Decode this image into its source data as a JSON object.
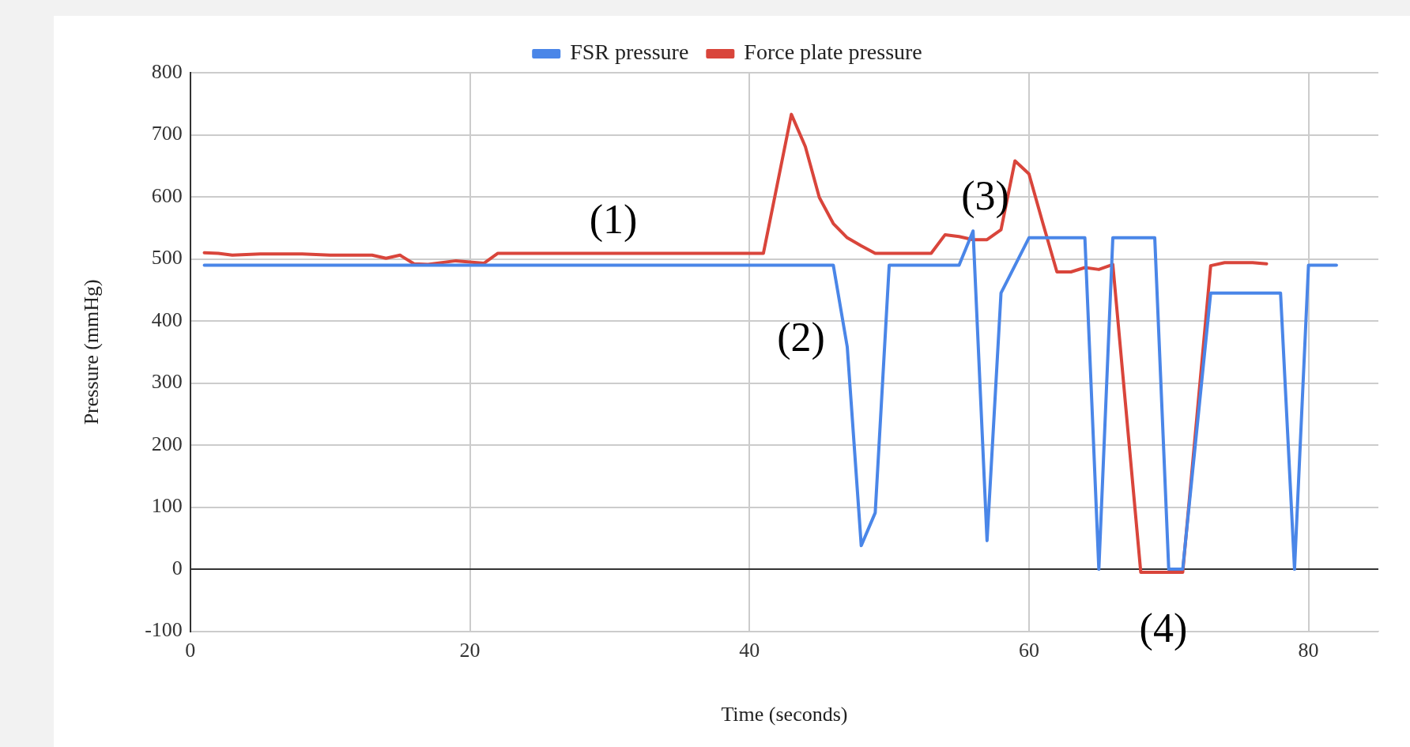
{
  "chart_data": {
    "type": "line",
    "xlabel": "Time (seconds)",
    "ylabel": "Pressure (mmHg)",
    "xlim": [
      0,
      85
    ],
    "xticks": [
      0,
      20,
      40,
      60,
      80
    ],
    "ylim": [
      -100,
      800
    ],
    "yticks": [
      -100,
      0,
      100,
      200,
      300,
      400,
      500,
      600,
      700,
      800
    ],
    "grid": true,
    "legend": "top",
    "marker": "none",
    "line_style": "solid",
    "series": [
      {
        "name": "FSR pressure",
        "color": "#4a86e8",
        "x": [
          1,
          46,
          47,
          48,
          49,
          50,
          55,
          56,
          57,
          58,
          60,
          64,
          65,
          66,
          69,
          70,
          71,
          73,
          78,
          79,
          80,
          82
        ],
        "values": [
          490,
          490,
          358,
          38,
          91,
          490,
          490,
          545,
          46,
          445,
          534,
          534,
          0,
          534,
          534,
          0,
          0,
          445,
          445,
          0,
          490,
          490
        ]
      },
      {
        "name": "Force plate pressure",
        "color": "#d9453b",
        "x": [
          1,
          2,
          3,
          5,
          8,
          10,
          13,
          14,
          15,
          16,
          17,
          19,
          21,
          22,
          41,
          43,
          44,
          45,
          46,
          47,
          48,
          49,
          53,
          54,
          55,
          56,
          57,
          58,
          59,
          60,
          61,
          62,
          63,
          64,
          65,
          66,
          68,
          69,
          70,
          71,
          73,
          74,
          76,
          77
        ],
        "values": [
          510,
          509,
          506,
          508,
          508,
          506,
          506,
          501,
          506,
          492,
          491,
          497,
          493,
          509,
          509,
          733,
          681,
          599,
          557,
          534,
          521,
          509,
          509,
          539,
          536,
          531,
          531,
          547,
          658,
          637,
          557,
          479,
          479,
          486,
          483,
          491,
          -5,
          -5,
          -5,
          -5,
          489,
          494,
          494,
          492
        ]
      }
    ],
    "annotations": [
      "(1)",
      "(2)",
      "(3)",
      "(4)"
    ]
  }
}
